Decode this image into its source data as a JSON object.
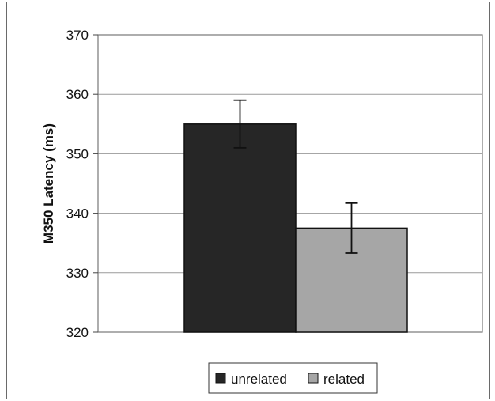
{
  "chart_data": {
    "type": "bar",
    "title": "",
    "xlabel": "",
    "ylabel": "M350 Latency (ms)",
    "ylim": [
      320,
      370
    ],
    "yticks": [
      320,
      330,
      340,
      350,
      360,
      370
    ],
    "grid": true,
    "legend_position": "bottom",
    "series": [
      {
        "name": "unrelated",
        "values": [
          355
        ],
        "error": [
          4
        ],
        "color": "#262626"
      },
      {
        "name": "related",
        "values": [
          337.5
        ],
        "error": [
          4.2
        ],
        "color": "#a6a6a6"
      }
    ]
  }
}
